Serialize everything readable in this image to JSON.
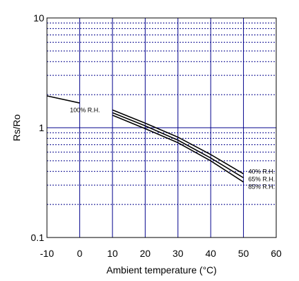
{
  "chart_data": {
    "type": "line",
    "title": "",
    "xlabel": "Ambient temperature (°C)",
    "ylabel": "Rs/Ro",
    "xlim": [
      -10,
      60
    ],
    "ylim": [
      0.1,
      10
    ],
    "yscale": "log",
    "grid": true,
    "legend": "none",
    "colors": {
      "grid_major": "#00008b",
      "grid_minor": "#00008b",
      "line": "#000000"
    },
    "x_ticks": [
      "-10",
      "0",
      "10",
      "20",
      "30",
      "40",
      "50",
      "60"
    ],
    "y_ticks": [
      "0.1",
      "1",
      "10"
    ],
    "series": [
      {
        "name": "100% R.H.",
        "x": [
          -10,
          0
        ],
        "y": [
          1.95,
          1.68
        ]
      },
      {
        "name": "40% R.H.",
        "x": [
          10,
          20,
          30,
          40,
          50
        ],
        "y": [
          1.45,
          1.1,
          0.82,
          0.57,
          0.38
        ]
      },
      {
        "name": "65% R.H.",
        "x": [
          10,
          20,
          30,
          40,
          50
        ],
        "y": [
          1.37,
          1.04,
          0.77,
          0.53,
          0.35
        ]
      },
      {
        "name": "85% R.H.",
        "x": [
          10,
          20,
          30,
          40,
          50
        ],
        "y": [
          1.3,
          0.98,
          0.73,
          0.5,
          0.32
        ]
      }
    ],
    "annotations": [
      {
        "text": "100% R.H.",
        "x": -3,
        "y": 1.45
      },
      {
        "text": "40% R.H.",
        "x": 51.5,
        "y": 0.4
      },
      {
        "text": "65% R.H.",
        "x": 51.5,
        "y": 0.34
      },
      {
        "text": "85% R.H.",
        "x": 51.5,
        "y": 0.29
      }
    ]
  }
}
